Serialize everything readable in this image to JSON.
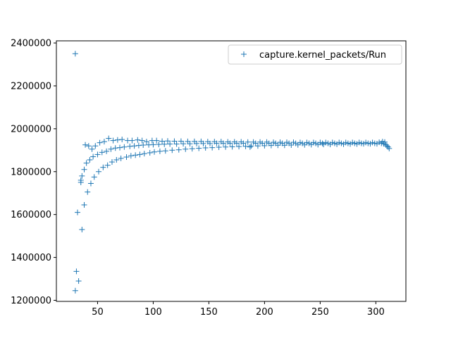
{
  "chart_data": {
    "type": "scatter",
    "title": "",
    "xlabel": "",
    "ylabel": "",
    "xlim": [
      13,
      327
    ],
    "ylim": [
      1195000,
      2410000
    ],
    "x_ticks": [
      50,
      100,
      150,
      200,
      250,
      300
    ],
    "y_ticks": [
      1200000,
      1400000,
      1600000,
      1800000,
      2000000,
      2200000,
      2400000
    ],
    "x_tick_labels": [
      "50",
      "100",
      "150",
      "200",
      "250",
      "300"
    ],
    "y_tick_labels": [
      "1200000",
      "1400000",
      "1600000",
      "1800000",
      "2000000",
      "2200000",
      "2400000"
    ],
    "grid": false,
    "legend_placement": "top-right",
    "marker": "+",
    "color": "#1f77b4",
    "series": [
      {
        "name": "capture.kernel_packets/Run",
        "points": [
          [
            30,
            2350000
          ],
          [
            30,
            1245000
          ],
          [
            31,
            1335000
          ],
          [
            32,
            1610000
          ],
          [
            33,
            1290000
          ],
          [
            35,
            1760000
          ],
          [
            35,
            1750000
          ],
          [
            36,
            1780000
          ],
          [
            36,
            1530000
          ],
          [
            38,
            1810000
          ],
          [
            38,
            1645000
          ],
          [
            39,
            1925000
          ],
          [
            40,
            1840000
          ],
          [
            41,
            1705000
          ],
          [
            42,
            1920000
          ],
          [
            43,
            1855000
          ],
          [
            44,
            1745000
          ],
          [
            45,
            1905000
          ],
          [
            46,
            1870000
          ],
          [
            47,
            1775000
          ],
          [
            48,
            1920000
          ],
          [
            50,
            1880000
          ],
          [
            51,
            1800000
          ],
          [
            52,
            1935000
          ],
          [
            54,
            1890000
          ],
          [
            55,
            1820000
          ],
          [
            56,
            1940000
          ],
          [
            58,
            1895000
          ],
          [
            59,
            1830000
          ],
          [
            60,
            1955000
          ],
          [
            62,
            1905000
          ],
          [
            63,
            1845000
          ],
          [
            64,
            1945000
          ],
          [
            66,
            1910000
          ],
          [
            67,
            1855000
          ],
          [
            68,
            1948000
          ],
          [
            70,
            1912000
          ],
          [
            71,
            1862000
          ],
          [
            72,
            1950000
          ],
          [
            74,
            1915000
          ],
          [
            76,
            1868000
          ],
          [
            77,
            1945000
          ],
          [
            79,
            1918000
          ],
          [
            80,
            1874000
          ],
          [
            81,
            1945000
          ],
          [
            83,
            1920000
          ],
          [
            84,
            1877000
          ],
          [
            86,
            1948000
          ],
          [
            87,
            1922000
          ],
          [
            88,
            1880000
          ],
          [
            90,
            1945000
          ],
          [
            91,
            1924000
          ],
          [
            92,
            1884000
          ],
          [
            94,
            1940000
          ],
          [
            96,
            1925000
          ],
          [
            97,
            1888000
          ],
          [
            99,
            1945000
          ],
          [
            100,
            1926000
          ],
          [
            101,
            1892000
          ],
          [
            103,
            1945000
          ],
          [
            105,
            1927000
          ],
          [
            106,
            1895000
          ],
          [
            108,
            1942000
          ],
          [
            110,
            1928000
          ],
          [
            111,
            1897000
          ],
          [
            113,
            1943000
          ],
          [
            115,
            1929000
          ],
          [
            117,
            1900000
          ],
          [
            119,
            1942000
          ],
          [
            121,
            1929000
          ],
          [
            123,
            1902000
          ],
          [
            125,
            1942000
          ],
          [
            127,
            1930000
          ],
          [
            129,
            1905000
          ],
          [
            131,
            1941000
          ],
          [
            133,
            1930000
          ],
          [
            135,
            1907000
          ],
          [
            137,
            1941000
          ],
          [
            139,
            1931000
          ],
          [
            141,
            1909000
          ],
          [
            143,
            1941000
          ],
          [
            145,
            1931000
          ],
          [
            147,
            1911000
          ],
          [
            149,
            1940000
          ],
          [
            151,
            1931000
          ],
          [
            153,
            1912000
          ],
          [
            155,
            1940000
          ],
          [
            157,
            1932000
          ],
          [
            159,
            1914000
          ],
          [
            161,
            1940000
          ],
          [
            163,
            1932000
          ],
          [
            165,
            1915000
          ],
          [
            167,
            1939000
          ],
          [
            169,
            1932000
          ],
          [
            171,
            1916000
          ],
          [
            173,
            1939000
          ],
          [
            175,
            1932000
          ],
          [
            177,
            1917000
          ],
          [
            179,
            1939000
          ],
          [
            181,
            1932000
          ],
          [
            183,
            1918000
          ],
          [
            185,
            1938000
          ],
          [
            187,
            1915000
          ],
          [
            188,
            1920000
          ],
          [
            190,
            1938000
          ],
          [
            192,
            1932000
          ],
          [
            194,
            1920000
          ],
          [
            196,
            1938000
          ],
          [
            198,
            1932000
          ],
          [
            200,
            1921000
          ],
          [
            202,
            1938000
          ],
          [
            204,
            1932000
          ],
          [
            206,
            1922000
          ],
          [
            208,
            1937000
          ],
          [
            210,
            1932000
          ],
          [
            212,
            1923000
          ],
          [
            214,
            1937000
          ],
          [
            216,
            1932000
          ],
          [
            218,
            1923000
          ],
          [
            220,
            1937000
          ],
          [
            222,
            1932000
          ],
          [
            224,
            1924000
          ],
          [
            226,
            1937000
          ],
          [
            228,
            1932000
          ],
          [
            230,
            1925000
          ],
          [
            232,
            1936000
          ],
          [
            234,
            1932000
          ],
          [
            236,
            1925000
          ],
          [
            238,
            1936000
          ],
          [
            240,
            1932000
          ],
          [
            242,
            1926000
          ],
          [
            244,
            1936000
          ],
          [
            246,
            1932000
          ],
          [
            248,
            1926000
          ],
          [
            250,
            1936000
          ],
          [
            252,
            1932000
          ],
          [
            253,
            1927000
          ],
          [
            255,
            1936000
          ],
          [
            257,
            1932000
          ],
          [
            259,
            1927000
          ],
          [
            261,
            1936000
          ],
          [
            263,
            1932000
          ],
          [
            265,
            1928000
          ],
          [
            267,
            1936000
          ],
          [
            269,
            1932000
          ],
          [
            271,
            1928000
          ],
          [
            273,
            1936000
          ],
          [
            275,
            1932000
          ],
          [
            277,
            1929000
          ],
          [
            279,
            1936000
          ],
          [
            281,
            1932000
          ],
          [
            283,
            1929000
          ],
          [
            285,
            1936000
          ],
          [
            287,
            1932000
          ],
          [
            289,
            1930000
          ],
          [
            291,
            1936000
          ],
          [
            293,
            1932000
          ],
          [
            295,
            1930000
          ],
          [
            297,
            1936000
          ],
          [
            299,
            1932000
          ],
          [
            301,
            1930000
          ],
          [
            303,
            1937000
          ],
          [
            305,
            1932000
          ],
          [
            306,
            1940000
          ],
          [
            307,
            1930000
          ],
          [
            308,
            1938000
          ],
          [
            309,
            1925000
          ],
          [
            310,
            1920000
          ],
          [
            311,
            1915000
          ],
          [
            312,
            1908000
          ]
        ]
      }
    ]
  }
}
